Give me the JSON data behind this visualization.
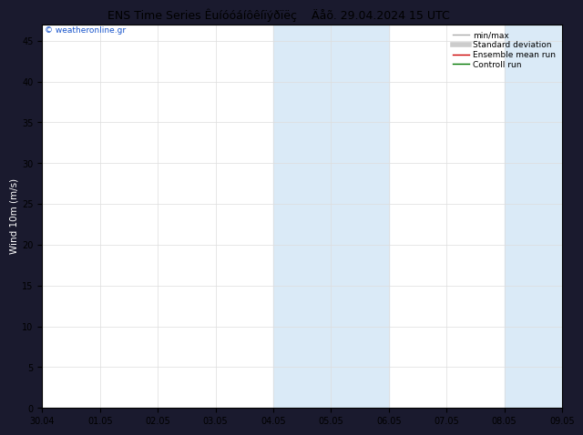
{
  "title": "ENS Time Series Êuíóóáíôêíïýðïëç",
  "title_date": "Äåõ. 29.04.2024 15 UTC",
  "xlabel_ticks": [
    "30.04",
    "01.05",
    "02.05",
    "03.05",
    "04.05",
    "05.05",
    "06.05",
    "07.05",
    "08.05",
    "09.05"
  ],
  "ylabel": "Wind 10m (m/s)",
  "ylim": [
    0,
    47
  ],
  "yticks": [
    0,
    5,
    10,
    15,
    20,
    25,
    30,
    35,
    40,
    45
  ],
  "shaded_regions": [
    {
      "xstart": 4,
      "xend": 5,
      "color": "#daeaf7"
    },
    {
      "xstart": 5,
      "xend": 6,
      "color": "#daeaf7"
    },
    {
      "xstart": 8,
      "xend": 9,
      "color": "#daeaf7"
    }
  ],
  "background_color": "#1a1a2e",
  "plot_bg_color": "#ffffff",
  "watermark": "© weatheronline.gr",
  "watermark_color": "#1a56cc",
  "legend_items": [
    {
      "label": "min/max",
      "color": "#aaaaaa",
      "lw": 1.0
    },
    {
      "label": "Standard deviation",
      "color": "#cccccc",
      "lw": 4.0
    },
    {
      "label": "Ensemble mean run",
      "color": "#cc0000",
      "lw": 1.0
    },
    {
      "label": "Controll run",
      "color": "#007700",
      "lw": 1.0
    }
  ],
  "title_fontsize": 9,
  "tick_fontsize": 7,
  "label_fontsize": 7.5,
  "legend_fontsize": 6.5,
  "grid_color": "#dddddd",
  "tick_color": "#000000",
  "spine_color": "#000000"
}
